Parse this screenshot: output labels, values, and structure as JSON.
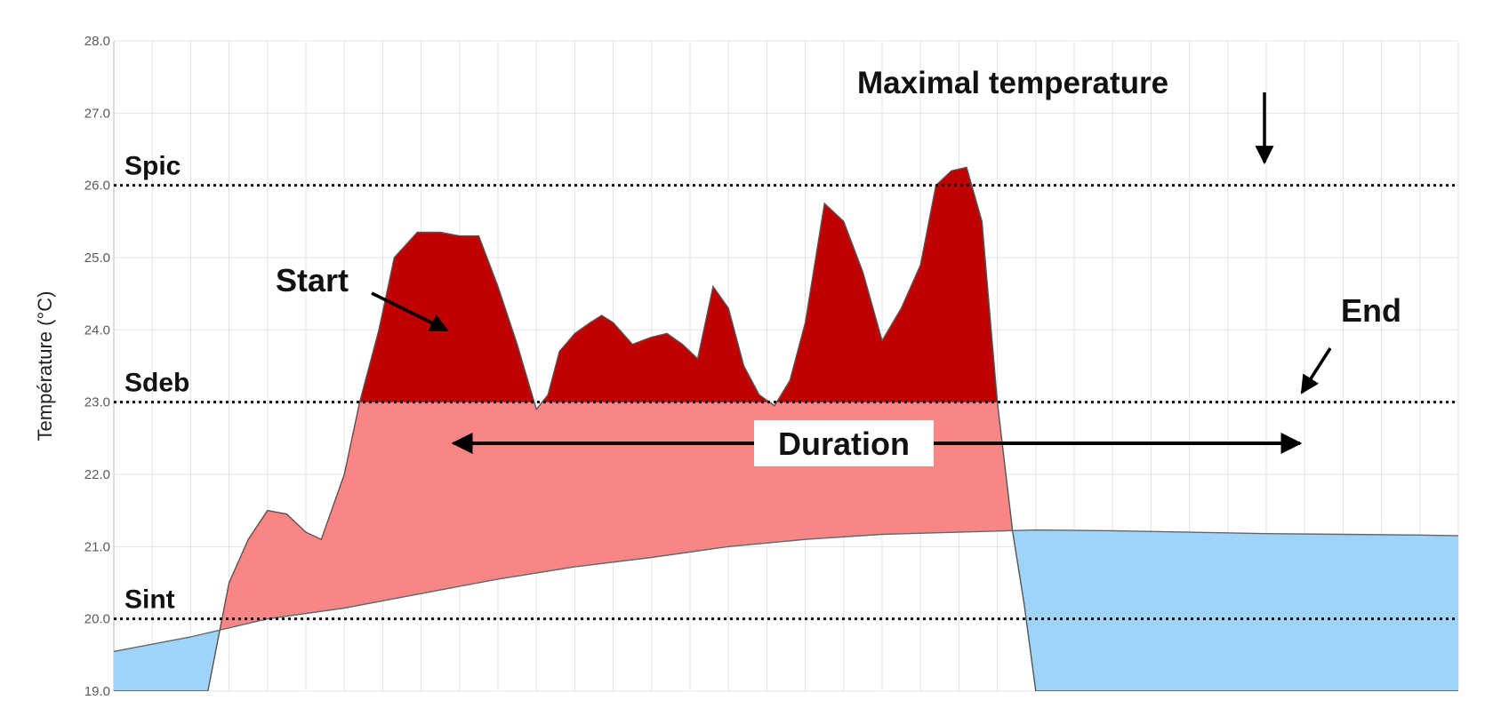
{
  "chart_data": {
    "type": "area",
    "ylabel": "Température (°C)",
    "ylim": [
      19.0,
      28.0
    ],
    "yticks": [
      "19.0",
      "20.0",
      "21.0",
      "22.0",
      "23.0",
      "24.0",
      "25.0",
      "26.0",
      "27.0",
      "28.0"
    ],
    "xlim": [
      0,
      35
    ],
    "grid": true,
    "thresholds": [
      {
        "label": "Spic",
        "value": 26.0
      },
      {
        "label": "Sdeb",
        "value": 23.0
      },
      {
        "label": "Sint",
        "value": 20.0
      }
    ],
    "series": [
      {
        "role": "temperature",
        "x": [
          0,
          2.45,
          3.0,
          3.5,
          4.0,
          4.5,
          5.0,
          5.4,
          6.0,
          6.4,
          6.9,
          7.3,
          7.9,
          8.5,
          9.0,
          9.5,
          10.0,
          10.5,
          11.0,
          11.3,
          11.6,
          12.0,
          12.4,
          12.7,
          13.0,
          13.5,
          14.0,
          14.4,
          14.8,
          15.2,
          15.6,
          16.0,
          16.4,
          16.8,
          17.2,
          17.6,
          18.0,
          18.5,
          19.0,
          19.5,
          20.0,
          20.5,
          21.0,
          21.4,
          21.8,
          22.2,
          22.6,
          23.0,
          23.4,
          23.7,
          24.0,
          24.4,
          24.8,
          25.2,
          25.6,
          26.0,
          26.5,
          27.0,
          27.4,
          27.8,
          28.2,
          28.6,
          29.0,
          29.4,
          29.8,
          30.2,
          30.6,
          31.0,
          31.5,
          32.0,
          32.5,
          33.0,
          33.5,
          34.0,
          35.0
        ],
        "y": [
          19.0,
          19.0,
          20.5,
          21.1,
          21.5,
          21.45,
          21.2,
          21.1,
          22.0,
          23.0,
          24.0,
          25.0,
          25.35,
          25.35,
          25.3,
          25.3,
          24.6,
          23.8,
          22.9,
          23.1,
          23.7,
          23.95,
          24.1,
          24.2,
          24.1,
          23.8,
          23.9,
          23.95,
          23.8,
          23.6,
          24.6,
          24.3,
          23.5,
          23.1,
          22.95,
          23.3,
          24.1,
          25.75,
          25.5,
          24.8,
          23.85,
          24.3,
          24.9,
          26.0,
          26.2,
          26.25,
          25.5,
          23.0,
          21.2,
          20.2,
          19.0,
          19.0,
          19.0,
          19.0,
          19.0,
          19.0,
          19.0,
          19.0,
          19.0,
          19.0,
          19.0,
          19.0,
          19.0,
          19.0,
          19.0,
          19.0,
          19.0,
          19.0,
          19.0,
          19.0,
          19.0,
          19.0,
          19.0,
          19.0,
          19.0
        ]
      },
      {
        "role": "interior-reference",
        "x": [
          0,
          2,
          4,
          6,
          8,
          10,
          12,
          14,
          16,
          18,
          20,
          22,
          24,
          26,
          28,
          30,
          32,
          34,
          35
        ],
        "y": [
          19.55,
          19.75,
          20.0,
          20.15,
          20.35,
          20.55,
          20.72,
          20.85,
          21.0,
          21.1,
          21.17,
          21.2,
          21.23,
          21.22,
          21.2,
          21.18,
          21.17,
          21.16,
          21.15
        ]
      }
    ],
    "annotations": {
      "start": "Start",
      "end": "End",
      "duration": "Duration",
      "max": "Maximal temperature"
    },
    "colors": {
      "above_sdeb": "#c00000",
      "between": "#f98585",
      "below": "#9fd3f7",
      "grid": "#e4e4e4"
    }
  }
}
